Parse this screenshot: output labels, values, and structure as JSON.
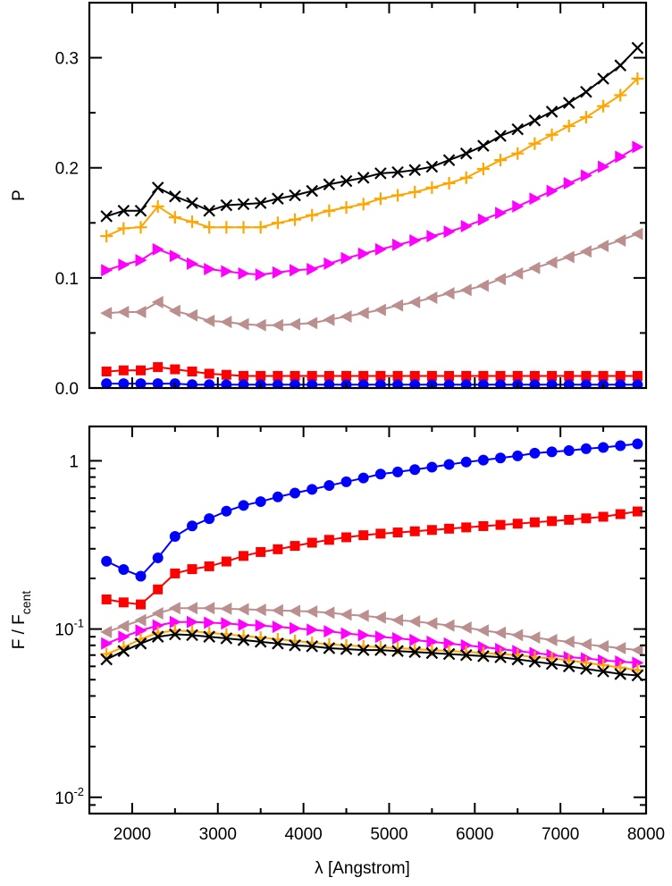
{
  "chart_data": [
    {
      "type": "line",
      "panel": "top",
      "title": "",
      "xlabel": "",
      "ylabel": "P",
      "xlim": [
        1500,
        8000
      ],
      "ylim": [
        0.0,
        0.35
      ],
      "yscale": "linear",
      "xticks": [
        2000,
        3000,
        4000,
        5000,
        6000,
        7000,
        8000
      ],
      "yticks": [
        0.0,
        0.1,
        0.2,
        0.3
      ],
      "ytick_labels": [
        "0.0",
        "0.1",
        "0.2",
        "0.3"
      ],
      "x": [
        1700,
        1900,
        2100,
        2300,
        2500,
        2700,
        2900,
        3100,
        3300,
        3500,
        3700,
        3900,
        4100,
        4300,
        4500,
        4700,
        4900,
        5100,
        5300,
        5500,
        5700,
        5900,
        6100,
        6300,
        6500,
        6700,
        6900,
        7100,
        7300,
        7500,
        7700,
        7900
      ],
      "series": [
        {
          "name": "black",
          "color": "#000000",
          "marker": "x",
          "values": [
            0.156,
            0.161,
            0.161,
            0.182,
            0.174,
            0.168,
            0.161,
            0.166,
            0.167,
            0.168,
            0.172,
            0.175,
            0.179,
            0.185,
            0.188,
            0.191,
            0.195,
            0.196,
            0.198,
            0.201,
            0.207,
            0.213,
            0.22,
            0.229,
            0.235,
            0.243,
            0.251,
            0.259,
            0.269,
            0.281,
            0.293,
            0.309
          ]
        },
        {
          "name": "orange",
          "color": "#ffa500",
          "marker": "+",
          "values": [
            0.138,
            0.145,
            0.146,
            0.165,
            0.155,
            0.151,
            0.146,
            0.146,
            0.146,
            0.146,
            0.15,
            0.153,
            0.157,
            0.161,
            0.164,
            0.167,
            0.172,
            0.175,
            0.178,
            0.182,
            0.186,
            0.191,
            0.199,
            0.207,
            0.213,
            0.222,
            0.23,
            0.238,
            0.246,
            0.256,
            0.266,
            0.281
          ]
        },
        {
          "name": "magenta",
          "color": "#ff00ff",
          "marker": "triangle-right",
          "values": [
            0.107,
            0.112,
            0.116,
            0.126,
            0.12,
            0.113,
            0.108,
            0.106,
            0.104,
            0.103,
            0.105,
            0.107,
            0.108,
            0.113,
            0.118,
            0.122,
            0.126,
            0.13,
            0.134,
            0.138,
            0.142,
            0.147,
            0.153,
            0.159,
            0.165,
            0.172,
            0.179,
            0.186,
            0.193,
            0.201,
            0.21,
            0.219
          ]
        },
        {
          "name": "rosy-brown",
          "color": "#bc8f8f",
          "marker": "triangle-left",
          "values": [
            0.068,
            0.069,
            0.069,
            0.078,
            0.07,
            0.066,
            0.061,
            0.06,
            0.058,
            0.057,
            0.057,
            0.058,
            0.059,
            0.062,
            0.065,
            0.068,
            0.071,
            0.075,
            0.078,
            0.082,
            0.086,
            0.089,
            0.093,
            0.099,
            0.104,
            0.109,
            0.114,
            0.119,
            0.124,
            0.129,
            0.134,
            0.14
          ]
        },
        {
          "name": "red",
          "color": "#ff0000",
          "marker": "square",
          "values": [
            0.015,
            0.016,
            0.016,
            0.019,
            0.017,
            0.015,
            0.013,
            0.012,
            0.011,
            0.011,
            0.011,
            0.011,
            0.011,
            0.011,
            0.011,
            0.011,
            0.011,
            0.011,
            0.011,
            0.011,
            0.011,
            0.011,
            0.011,
            0.011,
            0.011,
            0.011,
            0.011,
            0.011,
            0.011,
            0.011,
            0.011,
            0.011
          ]
        },
        {
          "name": "blue",
          "color": "#0000ff",
          "marker": "circle",
          "values": [
            0.004,
            0.004,
            0.004,
            0.004,
            0.004,
            0.003,
            0.003,
            0.003,
            0.003,
            0.003,
            0.003,
            0.003,
            0.003,
            0.003,
            0.003,
            0.003,
            0.003,
            0.003,
            0.003,
            0.003,
            0.003,
            0.003,
            0.003,
            0.003,
            0.003,
            0.003,
            0.003,
            0.003,
            0.003,
            0.003,
            0.003,
            0.003
          ]
        }
      ]
    },
    {
      "type": "line",
      "panel": "bottom",
      "title": "",
      "xlabel": "λ [Angstrom]",
      "ylabel": "F / F",
      "ylabel_sub": "cent",
      "xlim": [
        1500,
        8000
      ],
      "ylim": [
        0.008,
        1.6
      ],
      "yscale": "log",
      "xticks": [
        2000,
        3000,
        4000,
        5000,
        6000,
        7000,
        8000
      ],
      "xtick_labels": [
        "2000",
        "3000",
        "4000",
        "5000",
        "6000",
        "7000",
        "8000"
      ],
      "yticks": [
        0.01,
        0.1,
        1
      ],
      "ytick_labels": [
        {
          "base": "10",
          "exp": "-2"
        },
        {
          "base": "10",
          "exp": "-1"
        },
        {
          "base": "1",
          "exp": ""
        }
      ],
      "x": [
        1700,
        1900,
        2100,
        2300,
        2500,
        2700,
        2900,
        3100,
        3300,
        3500,
        3700,
        3900,
        4100,
        4300,
        4500,
        4700,
        4900,
        5100,
        5300,
        5500,
        5700,
        5900,
        6100,
        6300,
        6500,
        6700,
        6900,
        7100,
        7300,
        7500,
        7700,
        7900
      ],
      "series": [
        {
          "name": "blue",
          "color": "#0000ff",
          "marker": "circle",
          "values": [
            0.253,
            0.226,
            0.206,
            0.265,
            0.355,
            0.41,
            0.453,
            0.502,
            0.543,
            0.572,
            0.61,
            0.643,
            0.676,
            0.713,
            0.75,
            0.79,
            0.834,
            0.859,
            0.887,
            0.917,
            0.951,
            0.983,
            1.01,
            1.04,
            1.07,
            1.11,
            1.13,
            1.15,
            1.18,
            1.2,
            1.23,
            1.26
          ]
        },
        {
          "name": "red",
          "color": "#ff0000",
          "marker": "square",
          "values": [
            0.15,
            0.144,
            0.14,
            0.172,
            0.214,
            0.227,
            0.236,
            0.252,
            0.272,
            0.287,
            0.298,
            0.312,
            0.326,
            0.339,
            0.351,
            0.361,
            0.369,
            0.375,
            0.381,
            0.388,
            0.395,
            0.402,
            0.409,
            0.416,
            0.423,
            0.431,
            0.438,
            0.446,
            0.455,
            0.465,
            0.482,
            0.5
          ]
        },
        {
          "name": "rosy-brown",
          "color": "#bc8f8f",
          "marker": "triangle-left",
          "values": [
            0.096,
            0.104,
            0.113,
            0.124,
            0.133,
            0.133,
            0.133,
            0.132,
            0.131,
            0.13,
            0.129,
            0.128,
            0.127,
            0.125,
            0.122,
            0.12,
            0.117,
            0.113,
            0.111,
            0.108,
            0.105,
            0.102,
            0.098,
            0.095,
            0.092,
            0.089,
            0.086,
            0.084,
            0.081,
            0.079,
            0.077,
            0.075
          ]
        },
        {
          "name": "magenta",
          "color": "#ff00ff",
          "marker": "triangle-right",
          "values": [
            0.082,
            0.09,
            0.098,
            0.105,
            0.11,
            0.11,
            0.109,
            0.108,
            0.106,
            0.105,
            0.103,
            0.101,
            0.099,
            0.097,
            0.094,
            0.092,
            0.09,
            0.088,
            0.086,
            0.084,
            0.082,
            0.08,
            0.078,
            0.076,
            0.074,
            0.072,
            0.07,
            0.068,
            0.067,
            0.065,
            0.064,
            0.063
          ]
        },
        {
          "name": "orange",
          "color": "#ffa500",
          "marker": "+",
          "values": [
            0.071,
            0.078,
            0.087,
            0.095,
            0.098,
            0.097,
            0.095,
            0.093,
            0.091,
            0.089,
            0.087,
            0.085,
            0.083,
            0.081,
            0.08,
            0.079,
            0.078,
            0.077,
            0.076,
            0.075,
            0.074,
            0.073,
            0.072,
            0.071,
            0.07,
            0.068,
            0.067,
            0.065,
            0.063,
            0.061,
            0.059,
            0.057
          ]
        },
        {
          "name": "black",
          "color": "#000000",
          "marker": "x",
          "values": [
            0.066,
            0.074,
            0.082,
            0.09,
            0.093,
            0.092,
            0.09,
            0.088,
            0.086,
            0.084,
            0.082,
            0.08,
            0.079,
            0.077,
            0.076,
            0.075,
            0.075,
            0.074,
            0.073,
            0.072,
            0.071,
            0.07,
            0.069,
            0.068,
            0.066,
            0.064,
            0.062,
            0.06,
            0.058,
            0.056,
            0.054,
            0.053
          ]
        }
      ]
    }
  ]
}
